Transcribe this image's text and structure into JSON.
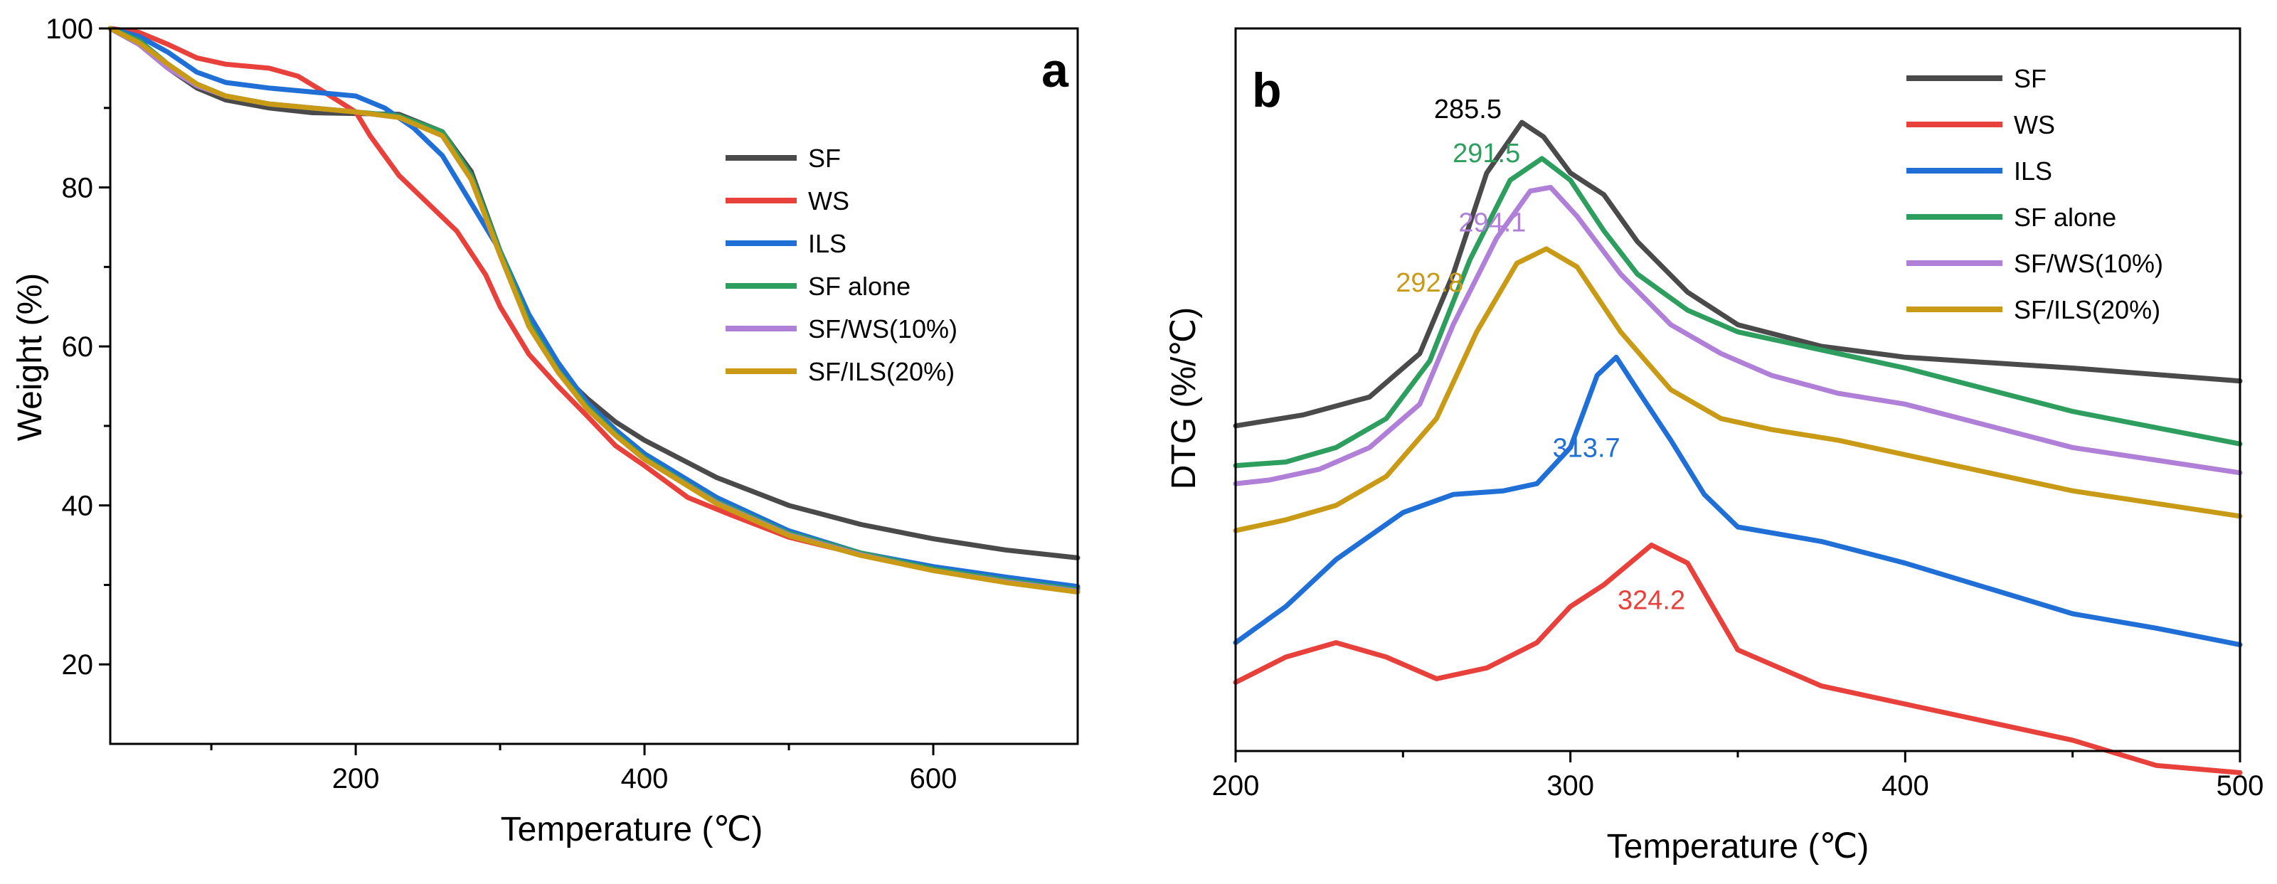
{
  "chart_data": [
    {
      "type": "line",
      "panel": "a",
      "xlabel": "Temperature (℃)",
      "ylabel": "Weight (%)",
      "xlim": [
        30,
        700
      ],
      "ylim": [
        10,
        100
      ],
      "xticks": [
        200,
        400,
        600
      ],
      "yticks": [
        20,
        40,
        60,
        80,
        100
      ],
      "legend_position": "center-right",
      "series": [
        {
          "name": "SF",
          "color": "#4a4a4a",
          "points": [
            [
              30,
              100
            ],
            [
              50,
              98
            ],
            [
              70,
              95
            ],
            [
              90,
              92.5
            ],
            [
              110,
              91
            ],
            [
              140,
              90
            ],
            [
              170,
              89.4
            ],
            [
              200,
              89.3
            ],
            [
              230,
              89.2
            ],
            [
              260,
              87
            ],
            [
              280,
              82
            ],
            [
              300,
              72
            ],
            [
              320,
              63
            ],
            [
              340,
              57
            ],
            [
              360,
              53.5
            ],
            [
              380,
              50.5
            ],
            [
              400,
              48.2
            ],
            [
              450,
              43.5
            ],
            [
              500,
              40
            ],
            [
              550,
              37.6
            ],
            [
              600,
              35.8
            ],
            [
              650,
              34.4
            ],
            [
              700,
              33.4
            ]
          ]
        },
        {
          "name": "WS",
          "color": "#e8413c",
          "points": [
            [
              30,
              100
            ],
            [
              50,
              99.5
            ],
            [
              70,
              98
            ],
            [
              90,
              96.3
            ],
            [
              110,
              95.5
            ],
            [
              140,
              95
            ],
            [
              160,
              94
            ],
            [
              180,
              91.8
            ],
            [
              200,
              89.5
            ],
            [
              210,
              86.5
            ],
            [
              230,
              81.5
            ],
            [
              250,
              78
            ],
            [
              270,
              74.5
            ],
            [
              290,
              69
            ],
            [
              300,
              65
            ],
            [
              320,
              59
            ],
            [
              340,
              55
            ],
            [
              360,
              51.3
            ],
            [
              380,
              47.5
            ],
            [
              400,
              45
            ],
            [
              430,
              41
            ],
            [
              460,
              38.8
            ],
            [
              500,
              36
            ],
            [
              550,
              33.8
            ],
            [
              600,
              32
            ],
            [
              650,
              30.6
            ],
            [
              700,
              29.6
            ]
          ]
        },
        {
          "name": "ILS",
          "color": "#1f6fd6",
          "points": [
            [
              30,
              100
            ],
            [
              50,
              99
            ],
            [
              70,
              97
            ],
            [
              90,
              94.5
            ],
            [
              110,
              93.2
            ],
            [
              140,
              92.5
            ],
            [
              170,
              92
            ],
            [
              200,
              91.5
            ],
            [
              220,
              90
            ],
            [
              240,
              87.5
            ],
            [
              260,
              84
            ],
            [
              280,
              78
            ],
            [
              300,
              72
            ],
            [
              320,
              64
            ],
            [
              340,
              58
            ],
            [
              360,
              53
            ],
            [
              380,
              49.5
            ],
            [
              400,
              46.5
            ],
            [
              450,
              41
            ],
            [
              500,
              36.8
            ],
            [
              550,
              34
            ],
            [
              600,
              32.3
            ],
            [
              650,
              31
            ],
            [
              700,
              29.8
            ]
          ]
        },
        {
          "name": "SF alone",
          "color": "#2e9e5e",
          "points": [
            [
              30,
              100
            ],
            [
              50,
              98.5
            ],
            [
              70,
              95.5
            ],
            [
              90,
              93
            ],
            [
              110,
              91.5
            ],
            [
              140,
              90.5
            ],
            [
              170,
              90
            ],
            [
              200,
              89.5
            ],
            [
              230,
              89
            ],
            [
              260,
              87
            ],
            [
              280,
              81.5
            ],
            [
              300,
              72
            ],
            [
              320,
              63
            ],
            [
              340,
              57
            ],
            [
              360,
              52.5
            ],
            [
              380,
              49
            ],
            [
              400,
              46
            ],
            [
              450,
              40.5
            ],
            [
              500,
              36.5
            ],
            [
              550,
              34
            ],
            [
              600,
              32
            ],
            [
              650,
              30.6
            ],
            [
              700,
              29.4
            ]
          ]
        },
        {
          "name": "SF/WS(10%)",
          "color": "#b07fd8",
          "points": [
            [
              30,
              100
            ],
            [
              50,
              98
            ],
            [
              70,
              95
            ],
            [
              90,
              92.8
            ],
            [
              110,
              91.5
            ],
            [
              140,
              90.5
            ],
            [
              170,
              90
            ],
            [
              200,
              89.5
            ],
            [
              230,
              88.8
            ],
            [
              260,
              86.5
            ],
            [
              280,
              81
            ],
            [
              300,
              71.5
            ],
            [
              320,
              62.5
            ],
            [
              340,
              56.8
            ],
            [
              360,
              52.2
            ],
            [
              380,
              48.8
            ],
            [
              400,
              45.8
            ],
            [
              450,
              40.3
            ],
            [
              500,
              36.3
            ],
            [
              550,
              33.8
            ],
            [
              600,
              31.8
            ],
            [
              650,
              30.4
            ],
            [
              700,
              29.2
            ]
          ]
        },
        {
          "name": "SF/ILS(20%)",
          "color": "#c99a16",
          "points": [
            [
              30,
              100
            ],
            [
              50,
              98.2
            ],
            [
              70,
              95.5
            ],
            [
              90,
              93
            ],
            [
              110,
              91.5
            ],
            [
              140,
              90.5
            ],
            [
              170,
              90
            ],
            [
              200,
              89.5
            ],
            [
              230,
              88.8
            ],
            [
              260,
              86.5
            ],
            [
              280,
              81
            ],
            [
              300,
              71.5
            ],
            [
              320,
              62.5
            ],
            [
              340,
              56.8
            ],
            [
              360,
              52.2
            ],
            [
              380,
              48.8
            ],
            [
              400,
              45.8
            ],
            [
              450,
              40.2
            ],
            [
              500,
              36.2
            ],
            [
              550,
              33.7
            ],
            [
              600,
              31.8
            ],
            [
              650,
              30.3
            ],
            [
              700,
              29.1
            ]
          ]
        }
      ]
    },
    {
      "type": "line",
      "panel": "b",
      "xlabel": "Temperature (℃)",
      "ylabel": "DTG (%/℃)",
      "xlim": [
        200,
        500
      ],
      "ylim": [
        0,
        100
      ],
      "xticks": [
        200,
        300,
        400,
        500
      ],
      "yticks": [],
      "legend_position": "top-right",
      "series": [
        {
          "name": "SF",
          "color": "#4a4a4a",
          "peak": "285.5",
          "peak_x": 285.5,
          "points": [
            [
              200,
              45
            ],
            [
              220,
              46.5
            ],
            [
              240,
              49
            ],
            [
              255,
              55
            ],
            [
              265,
              66
            ],
            [
              275,
              80
            ],
            [
              285.5,
              87
            ],
            [
              292,
              85
            ],
            [
              300,
              80
            ],
            [
              310,
              77
            ],
            [
              320,
              70.5
            ],
            [
              335,
              63.5
            ],
            [
              350,
              59
            ],
            [
              375,
              56
            ],
            [
              400,
              54.5
            ],
            [
              450,
              53
            ],
            [
              500,
              51.2
            ]
          ]
        },
        {
          "name": "WS",
          "color": "#e8413c",
          "peak": "324.2",
          "peak_x": 324.2,
          "points": [
            [
              200,
              9.5
            ],
            [
              215,
              13
            ],
            [
              230,
              15
            ],
            [
              245,
              13
            ],
            [
              260,
              10
            ],
            [
              275,
              11.5
            ],
            [
              290,
              15
            ],
            [
              300,
              20
            ],
            [
              310,
              23
            ],
            [
              324.2,
              28.5
            ],
            [
              335,
              26
            ],
            [
              350,
              14
            ],
            [
              375,
              9
            ],
            [
              400,
              6.5
            ],
            [
              425,
              4
            ],
            [
              450,
              1.5
            ],
            [
              475,
              -2
            ],
            [
              500,
              -3
            ]
          ]
        },
        {
          "name": "ILS",
          "color": "#1f6fd6",
          "peak": "313.7",
          "peak_x": 313.7,
          "points": [
            [
              200,
              15
            ],
            [
              215,
              20
            ],
            [
              230,
              26.5
            ],
            [
              250,
              33
            ],
            [
              265,
              35.5
            ],
            [
              280,
              36
            ],
            [
              290,
              37
            ],
            [
              300,
              42
            ],
            [
              308,
              52
            ],
            [
              313.7,
              54.5
            ],
            [
              320,
              50
            ],
            [
              330,
              43
            ],
            [
              340,
              35.5
            ],
            [
              350,
              31
            ],
            [
              375,
              29
            ],
            [
              400,
              26
            ],
            [
              425,
              22.5
            ],
            [
              450,
              19
            ],
            [
              475,
              17
            ],
            [
              500,
              14.7
            ]
          ]
        },
        {
          "name": "SF alone",
          "color": "#2e9e5e",
          "peak": "291.5",
          "peak_x": 291.5,
          "points": [
            [
              200,
              39.5
            ],
            [
              215,
              40
            ],
            [
              230,
              42
            ],
            [
              245,
              46
            ],
            [
              258,
              54
            ],
            [
              270,
              68
            ],
            [
              282,
              79
            ],
            [
              291.5,
              82
            ],
            [
              300,
              79
            ],
            [
              310,
              72
            ],
            [
              320,
              66
            ],
            [
              335,
              61
            ],
            [
              350,
              58
            ],
            [
              370,
              56
            ],
            [
              400,
              53
            ],
            [
              450,
              47
            ],
            [
              500,
              42.5
            ]
          ]
        },
        {
          "name": "SF/WS(10%)",
          "color": "#b07fd8",
          "peak": "294.1",
          "peak_x": 294.1,
          "points": [
            [
              200,
              37
            ],
            [
              210,
              37.5
            ],
            [
              225,
              39
            ],
            [
              240,
              42
            ],
            [
              255,
              48
            ],
            [
              265,
              59
            ],
            [
              278,
              71
            ],
            [
              288,
              77.5
            ],
            [
              294.1,
              78
            ],
            [
              302,
              74
            ],
            [
              315,
              66
            ],
            [
              330,
              59
            ],
            [
              345,
              55
            ],
            [
              360,
              52
            ],
            [
              380,
              49.5
            ],
            [
              400,
              48
            ],
            [
              450,
              42
            ],
            [
              500,
              38.5
            ]
          ]
        },
        {
          "name": "SF/ILS(20%)",
          "color": "#c99a16",
          "peak": "292.8",
          "peak_x": 292.8,
          "points": [
            [
              200,
              30.5
            ],
            [
              215,
              32
            ],
            [
              230,
              34
            ],
            [
              245,
              38
            ],
            [
              260,
              46
            ],
            [
              272,
              58
            ],
            [
              284,
              67.5
            ],
            [
              292.8,
              69.5
            ],
            [
              302,
              67
            ],
            [
              315,
              58
            ],
            [
              330,
              50
            ],
            [
              345,
              46
            ],
            [
              360,
              44.5
            ],
            [
              380,
              43
            ],
            [
              400,
              41
            ],
            [
              450,
              36
            ],
            [
              500,
              32.5
            ]
          ]
        }
      ]
    }
  ]
}
